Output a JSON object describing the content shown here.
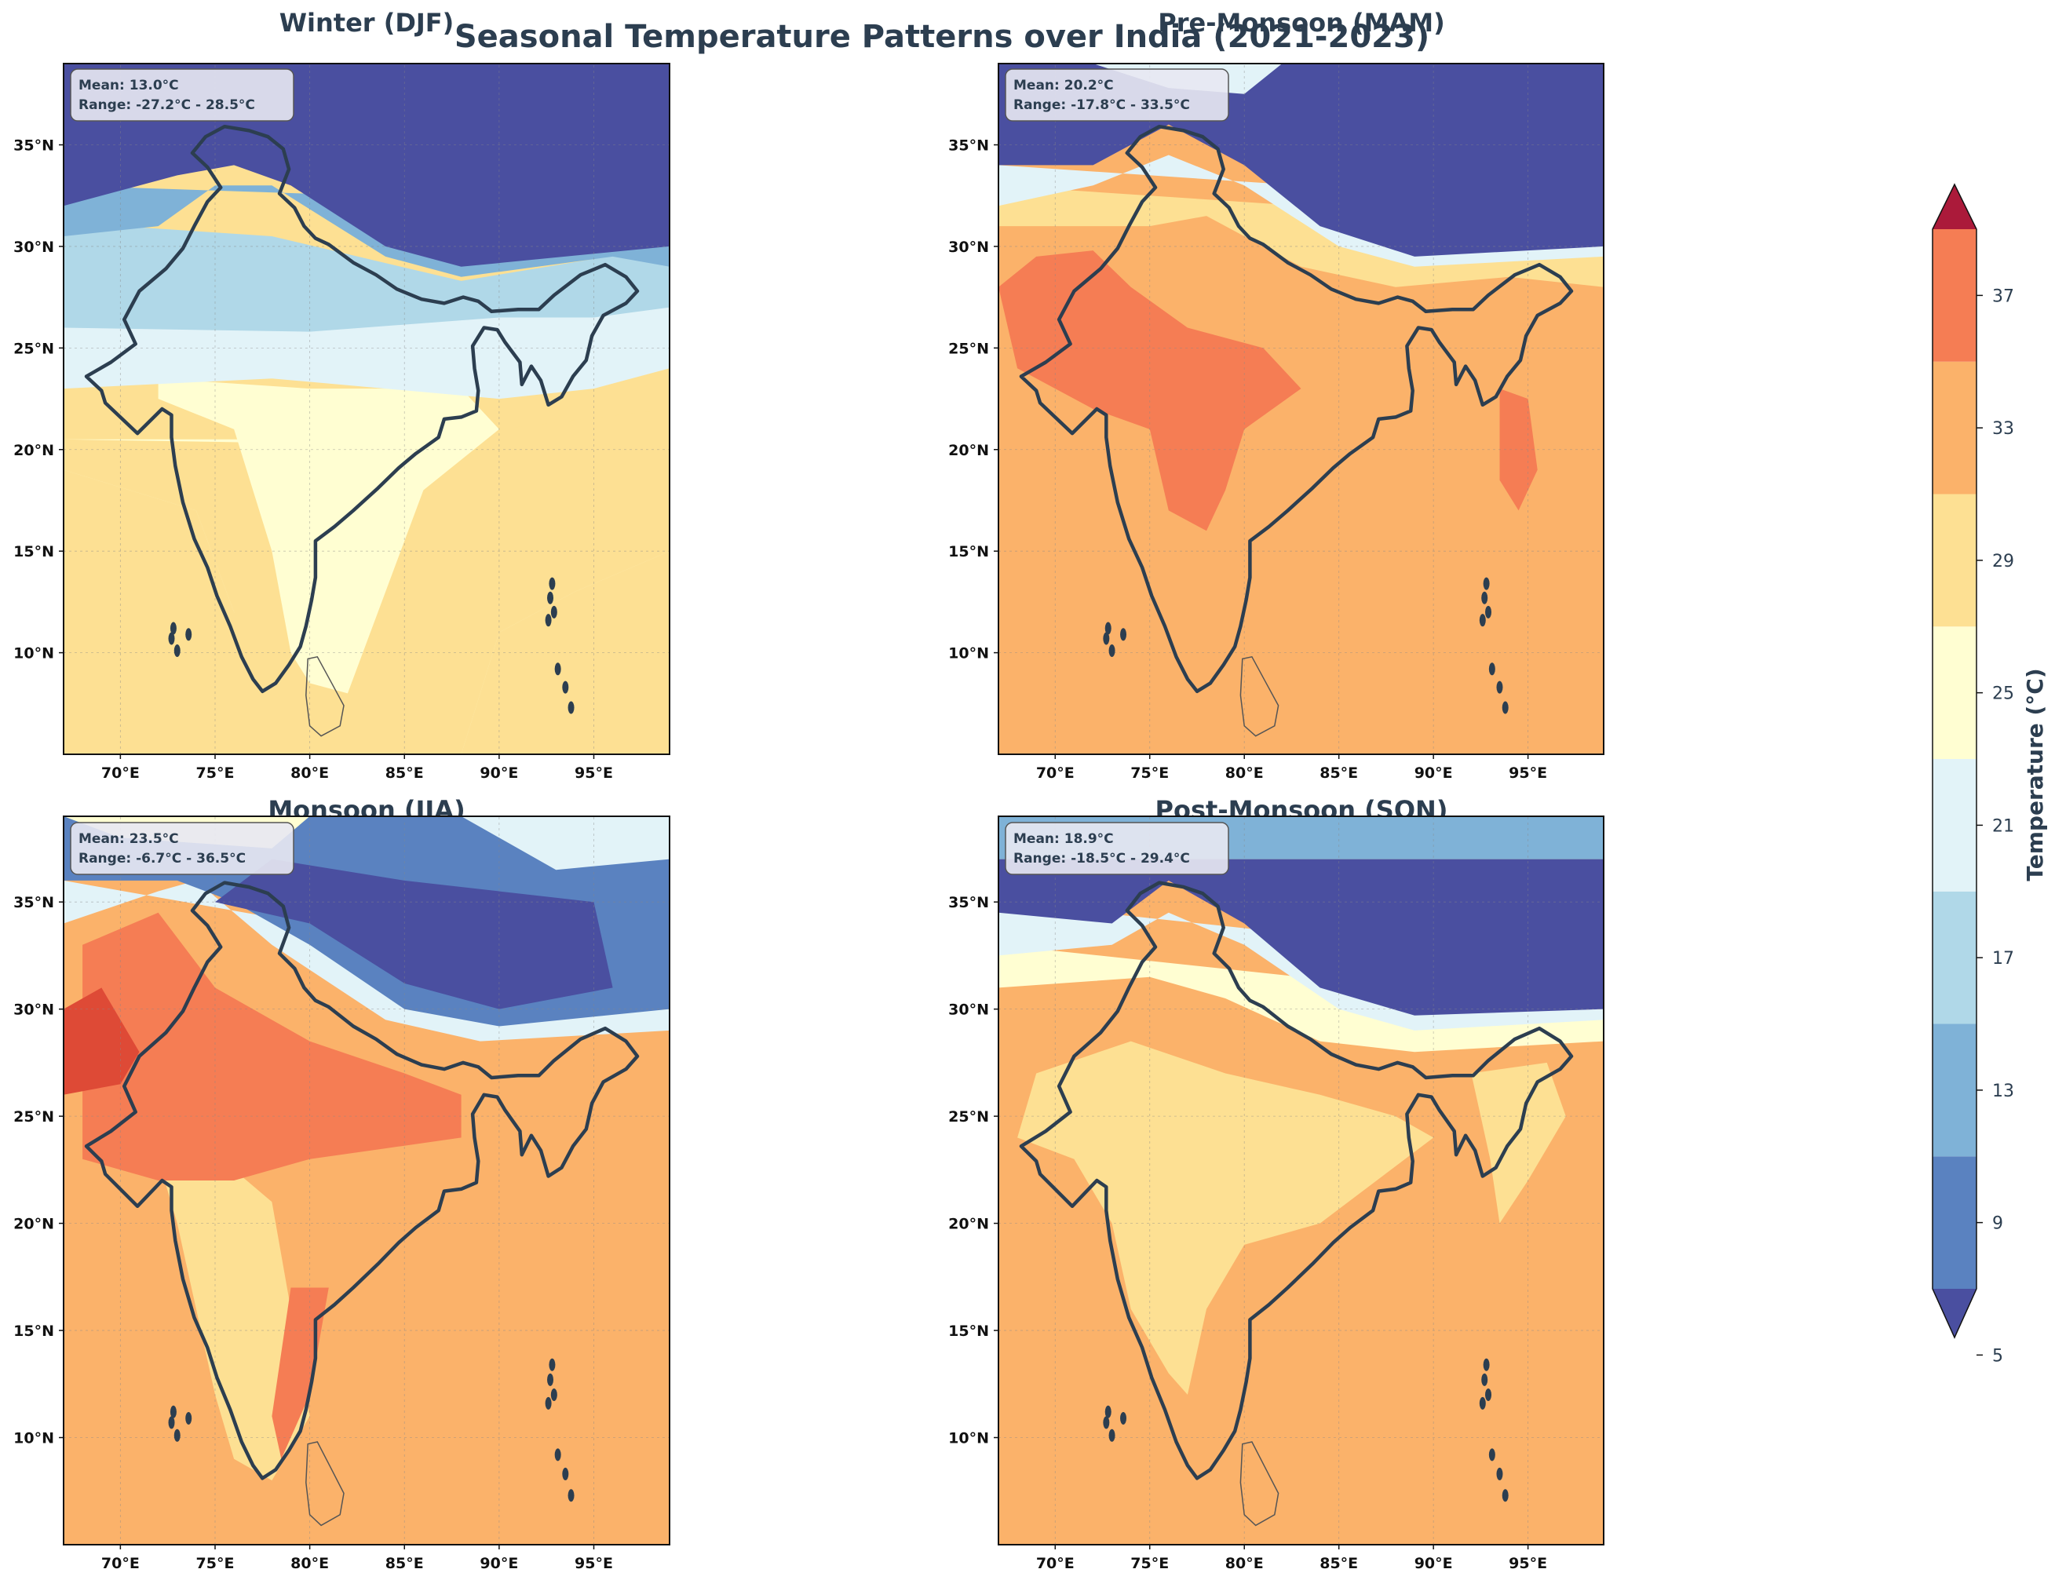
{
  "figure": {
    "title": "Seasonal Temperature Patterns over India (2021-2023)"
  },
  "axes": {
    "lon_range": [
      67,
      99
    ],
    "lat_range": [
      5,
      39
    ],
    "lon_ticks": [
      70,
      75,
      80,
      85,
      90,
      95
    ],
    "lat_ticks": [
      10,
      15,
      20,
      25,
      30,
      35
    ],
    "lon_labels": [
      "70°E",
      "75°E",
      "80°E",
      "85°E",
      "90°E",
      "95°E"
    ],
    "lat_labels": [
      "10°N",
      "15°N",
      "20°N",
      "25°N",
      "30°N",
      "35°N"
    ]
  },
  "panels": [
    {
      "key": "djf",
      "title": "Winter (DJF)",
      "mean": "Mean: 13.0°C",
      "range": "Range: -27.2°C - 28.5°C"
    },
    {
      "key": "mam",
      "title": "Pre-Monsoon (MAM)",
      "mean": "Mean: 20.2°C",
      "range": "Range: -17.8°C - 33.5°C"
    },
    {
      "key": "jja",
      "title": "Monsoon (JJA)",
      "mean": "Mean: 23.5°C",
      "range": "Range: -6.7°C - 36.5°C"
    },
    {
      "key": "son",
      "title": "Post-Monsoon (SON)",
      "mean": "Mean: 18.9°C",
      "range": "Range: -18.5°C - 29.4°C"
    }
  ],
  "colorbar": {
    "label": "Temperature (°C)",
    "ticks": [
      5,
      9,
      13,
      17,
      21,
      25,
      29,
      33,
      37
    ],
    "tick_labels": [
      "5",
      "9",
      "13",
      "17",
      "21",
      "25",
      "29",
      "33",
      "37"
    ],
    "levels": [
      5,
      7,
      11,
      15,
      19,
      23,
      27,
      31,
      35,
      39,
      41
    ],
    "colors": [
      "#4a4fa0",
      "#5a82c0",
      "#7fb2d7",
      "#b0d8e8",
      "#e2f3f8",
      "#fffed2",
      "#fde093",
      "#fbb26a",
      "#f57d54",
      "#de4a36",
      "#ab1a3a"
    ]
  },
  "colors": {
    "border": "#2c3e50",
    "cold": "#434599",
    "ocean": "#f9ae6b"
  }
}
